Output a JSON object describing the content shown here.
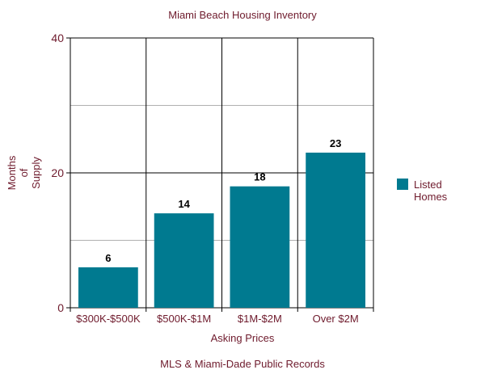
{
  "chart_data": {
    "type": "bar",
    "title": "Miami Beach Housing Inventory",
    "subtitle_bottom": "MLS & Miami-Dade Public Records",
    "xlabel": "Asking Prices",
    "ylabel_lines": [
      "Months",
      "of",
      "Supply"
    ],
    "categories": [
      "$300K-$500K",
      "$500K-$1M",
      "$1M-$2M",
      "Over $2M"
    ],
    "series": [
      {
        "name": "Listed Homes",
        "values": [
          6,
          14,
          18,
          23
        ]
      }
    ],
    "legend_lines": [
      "Listed",
      "Homes"
    ],
    "ylim": [
      0,
      40
    ],
    "major_ticks": [
      0,
      20,
      40
    ],
    "minor_gridlines": [
      10,
      30
    ],
    "grid": true,
    "legend_placement": "right",
    "colors": {
      "bar": "#007a90",
      "text": "#6e1a2c",
      "minor_grid": "#b0b0b0"
    }
  }
}
